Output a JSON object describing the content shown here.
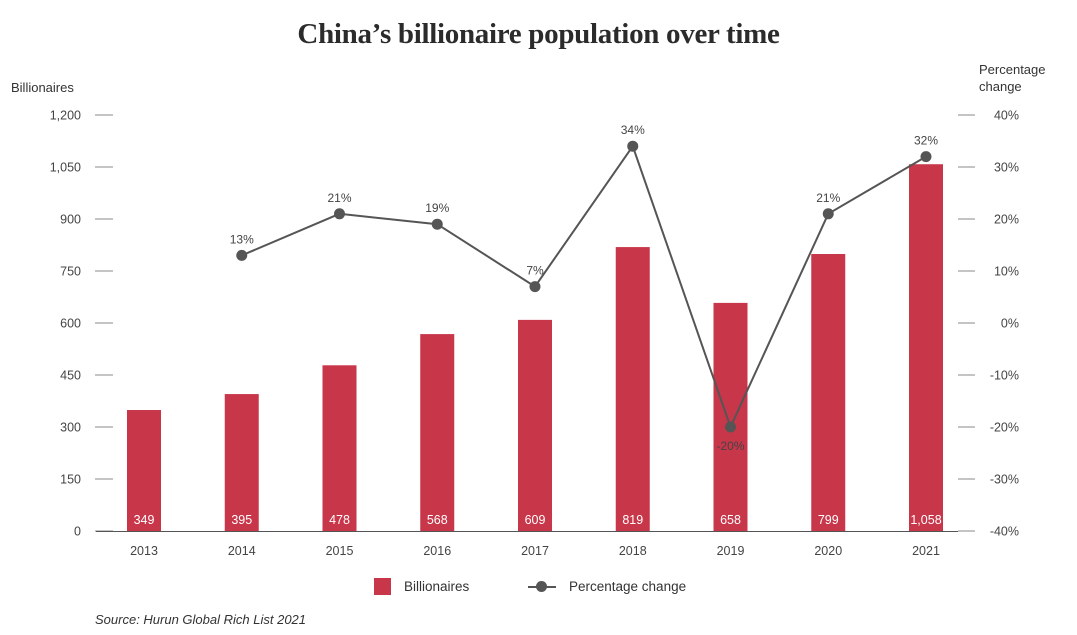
{
  "chart_data": {
    "type": "bar",
    "title": "China’s billionaire population over time",
    "categories": [
      "2013",
      "2014",
      "2015",
      "2016",
      "2017",
      "2018",
      "2019",
      "2020",
      "2021"
    ],
    "series": [
      {
        "name": "Billionaires",
        "type": "bar",
        "axis": "left",
        "color": "#c8364a",
        "values": [
          349,
          395,
          478,
          568,
          609,
          819,
          658,
          799,
          1058
        ],
        "value_labels": [
          "349",
          "395",
          "478",
          "568",
          "609",
          "819",
          "658",
          "799",
          "1,058"
        ]
      },
      {
        "name": "Percentage change",
        "type": "line",
        "axis": "right",
        "color": "#555555",
        "values": [
          null,
          13,
          21,
          19,
          7,
          34,
          -20,
          21,
          32
        ],
        "value_labels": [
          "",
          "13%",
          "21%",
          "19%",
          "7%",
          "34%",
          "-20%",
          "21%",
          "32%"
        ]
      }
    ],
    "y_left": {
      "label": "Billionaires",
      "range": [
        0,
        1200
      ],
      "ticks": [
        0,
        150,
        300,
        450,
        600,
        750,
        900,
        1050,
        1200
      ],
      "tick_labels": [
        "0",
        "150",
        "300",
        "450",
        "600",
        "750",
        "900",
        "1,050",
        "1,200"
      ]
    },
    "y_right": {
      "label": "Percentage change",
      "range": [
        -40,
        40
      ],
      "ticks": [
        -40,
        -30,
        -20,
        -10,
        0,
        10,
        20,
        30,
        40
      ],
      "tick_labels": [
        "-40%",
        "-30%",
        "-20%",
        "-10%",
        "0%",
        "10%",
        "20%",
        "30%",
        "40%"
      ]
    },
    "grid": false,
    "legend_position": "bottom-center"
  },
  "legend": {
    "bar_label": "Billionaires",
    "line_label": "Percentage change"
  },
  "axis_titles": {
    "left": "Billionaires",
    "right": "Percentage change"
  },
  "source": "Source: Hurun Global Rich List 2021"
}
